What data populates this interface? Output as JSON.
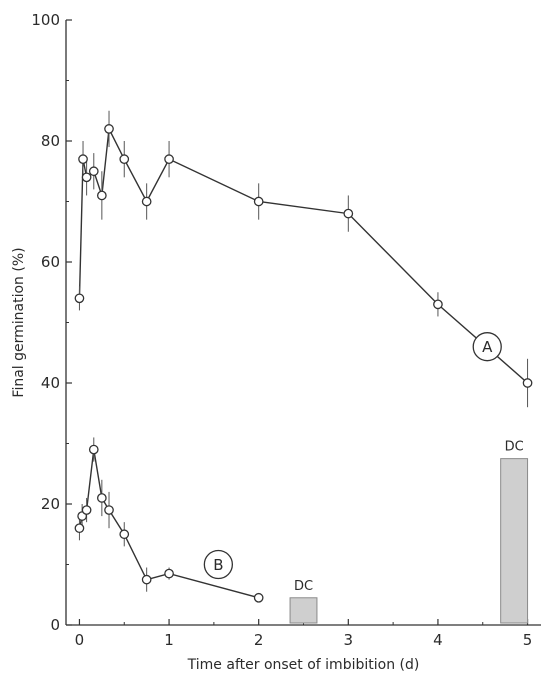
{
  "chart_data": {
    "type": "line",
    "title": "",
    "xlabel": "Time after onset of imbibition (d)",
    "ylabel": "Final germination (%)",
    "xlim": [
      -0.15,
      5.15
    ],
    "ylim": [
      0,
      100
    ],
    "x_ticks": [
      0,
      1,
      2,
      3,
      4,
      5
    ],
    "x_tick_labels": [
      "0",
      "1",
      "2",
      "3",
      "4",
      "5"
    ],
    "y_ticks": [
      0,
      20,
      40,
      60,
      80,
      100
    ],
    "y_tick_labels": [
      "0",
      "20",
      "40",
      "60",
      "80",
      "100"
    ],
    "grid": false,
    "line_color": "#333333",
    "bar_fill": "#cfcfcf",
    "series": [
      {
        "name": "A",
        "x": [
          0,
          0.04,
          0.08,
          0.16,
          0.25,
          0.33,
          0.5,
          0.75,
          1,
          2,
          3,
          4,
          5
        ],
        "y": [
          54,
          77,
          74,
          75,
          71,
          82,
          77,
          70,
          77,
          70,
          68,
          53,
          40
        ],
        "err": [
          2,
          3,
          3,
          3,
          4,
          3,
          3,
          3,
          3,
          3,
          3,
          2,
          4
        ]
      },
      {
        "name": "B",
        "x": [
          0,
          0.03,
          0.08,
          0.16,
          0.25,
          0.33,
          0.5,
          0.75,
          1,
          2
        ],
        "y": [
          16,
          18,
          19,
          29,
          21,
          19,
          15,
          7.5,
          8.5,
          4.5
        ],
        "err": [
          2,
          2,
          2,
          2,
          3,
          3,
          2,
          2,
          1,
          0
        ]
      }
    ],
    "bars": [
      {
        "label": "DC",
        "x_start": 2.35,
        "x_end": 2.65,
        "value": 4.5
      },
      {
        "label": "DC",
        "x_start": 4.7,
        "x_end": 5.0,
        "value": 27.5
      }
    ],
    "annotations": [
      {
        "text": "A",
        "x": 4.55,
        "y": 46
      },
      {
        "text": "B",
        "x": 1.55,
        "y": 10
      }
    ]
  }
}
